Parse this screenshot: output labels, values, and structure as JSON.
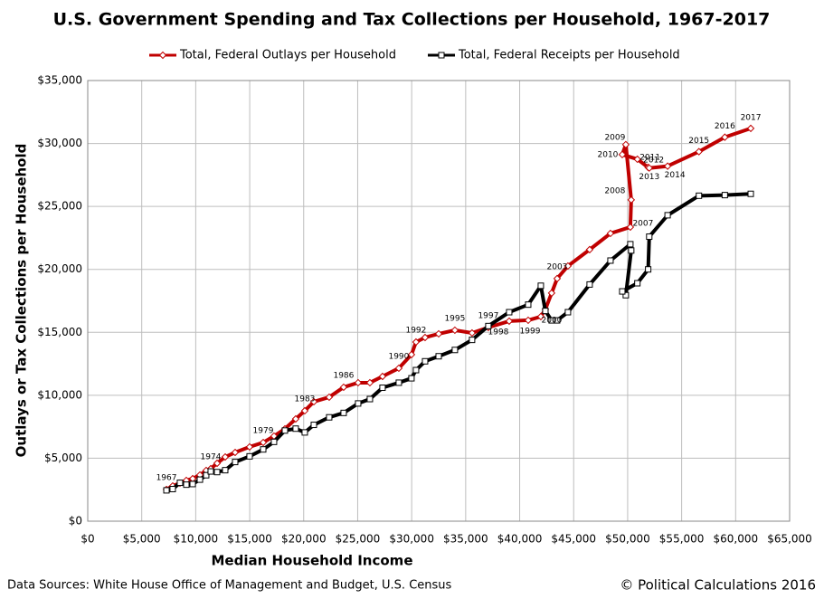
{
  "chart_data": {
    "type": "line",
    "title": "U.S. Government Spending and Tax Collections per Household, 1967-2017",
    "x_label": "Median Household Income",
    "y_label": "Outlays or Tax Collections per Household",
    "source": "Data Sources: White House Office of Management and Budget, U.S. Census",
    "credit": "© Political Calculations 2016",
    "legend": "top",
    "grid": true,
    "x": [
      7290,
      7870,
      8540,
      9130,
      9720,
      10390,
      10970,
      11390,
      11980,
      12730,
      13650,
      14990,
      16250,
      17250,
      18260,
      19260,
      20100,
      20940,
      22360,
      23700,
      25040,
      26130,
      27300,
      28810,
      29980,
      30400,
      31240,
      32500,
      34000,
      35590,
      37100,
      39030,
      40790,
      41960,
      42380,
      42960,
      43470,
      44470,
      46480,
      48410,
      50250,
      50330,
      49830,
      49500,
      50900,
      51900,
      52000,
      53700,
      56600,
      59000,
      61400
    ],
    "point_labels": [
      "1967",
      null,
      null,
      null,
      null,
      null,
      null,
      "1974",
      null,
      null,
      null,
      null,
      "1979",
      null,
      null,
      null,
      "1983",
      null,
      null,
      "1986",
      null,
      null,
      null,
      "1990",
      null,
      "1992",
      null,
      null,
      "1995",
      null,
      "1997",
      "1998",
      "1999",
      "2000",
      null,
      null,
      "2003",
      null,
      null,
      null,
      "2007",
      "2008",
      "2009",
      "2010",
      "2011",
      "2012",
      "2013",
      "2014",
      "2015",
      "2016",
      "2017"
    ],
    "series": [
      {
        "name": "Total, Federal Outlays per Household",
        "color": "#c00000",
        "marker": "diamond",
        "values": [
          2520,
          2800,
          3020,
          3240,
          3380,
          3670,
          4030,
          4170,
          4600,
          5100,
          5460,
          5900,
          6250,
          6760,
          7330,
          8120,
          8770,
          9490,
          9850,
          10640,
          11000,
          11000,
          11500,
          12150,
          13230,
          14230,
          14590,
          14880,
          15170,
          14950,
          15390,
          15890,
          15960,
          16250,
          16820,
          18120,
          19270,
          20270,
          21570,
          22860,
          23360,
          25520,
          29910,
          29120,
          28750,
          28100,
          28050,
          28200,
          29350,
          30500,
          31200
        ]
      },
      {
        "name": "Total, Federal Receipts per Household",
        "color": "#000000",
        "marker": "square",
        "values": [
          2450,
          2550,
          3050,
          2900,
          2950,
          3300,
          3650,
          3950,
          3900,
          4050,
          4700,
          5150,
          5700,
          6300,
          7200,
          7350,
          7050,
          7650,
          8250,
          8600,
          9350,
          9700,
          10600,
          11000,
          11350,
          12000,
          12700,
          13100,
          13600,
          14400,
          15500,
          16600,
          17200,
          18700,
          16700,
          15950,
          15950,
          16600,
          18800,
          20700,
          22000,
          21500,
          17950,
          18250,
          18900,
          20000,
          22600,
          24300,
          25850,
          25900,
          26000
        ]
      }
    ],
    "xlim": [
      0,
      65000
    ],
    "xticks": [
      {
        "value": 0,
        "label": "$0"
      },
      {
        "value": 5000,
        "label": "$5,000"
      },
      {
        "value": 10000,
        "label": "$10,000"
      },
      {
        "value": 15000,
        "label": "$15,000"
      },
      {
        "value": 20000,
        "label": "$20,000"
      },
      {
        "value": 25000,
        "label": "$25,000"
      },
      {
        "value": 30000,
        "label": "$30,000"
      },
      {
        "value": 35000,
        "label": "$35,000"
      },
      {
        "value": 40000,
        "label": "$40,000"
      },
      {
        "value": 45000,
        "label": "$45,000"
      },
      {
        "value": 50000,
        "label": "$50,000"
      },
      {
        "value": 55000,
        "label": "$55,000"
      },
      {
        "value": 60000,
        "label": "$60,000"
      },
      {
        "value": 65000,
        "label": "$65,000"
      }
    ],
    "ylim": [
      0,
      35000
    ],
    "yticks": [
      {
        "value": 0,
        "label": "$0"
      },
      {
        "value": 5000,
        "label": "$5,000"
      },
      {
        "value": 10000,
        "label": "$10,000"
      },
      {
        "value": 15000,
        "label": "$15,000"
      },
      {
        "value": 20000,
        "label": "$20,000"
      },
      {
        "value": 25000,
        "label": "$25,000"
      },
      {
        "value": 30000,
        "label": "$30,000"
      },
      {
        "value": 35000,
        "label": "$35,000"
      }
    ]
  }
}
